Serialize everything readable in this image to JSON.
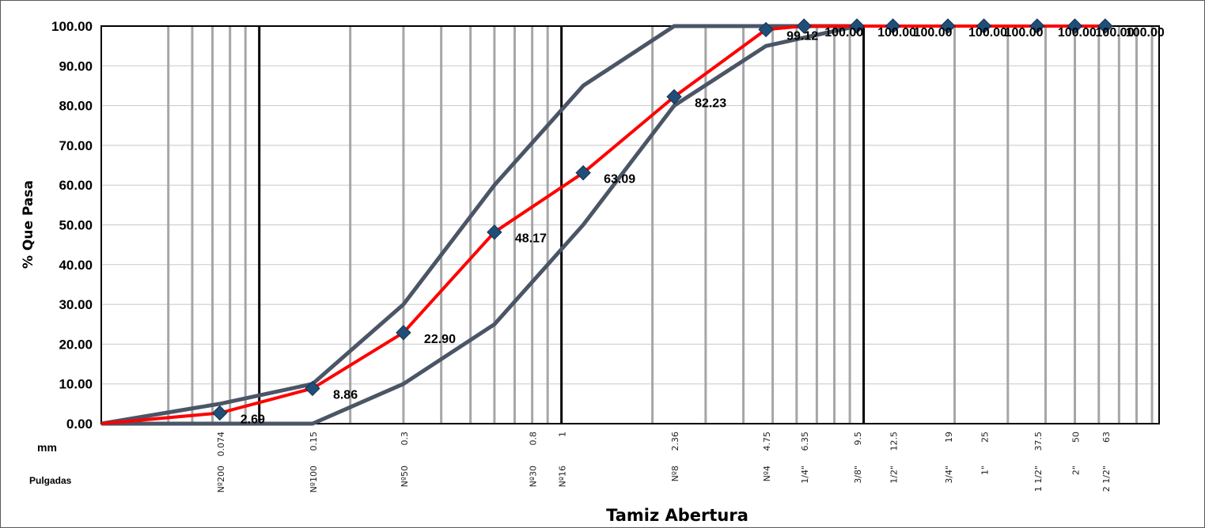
{
  "chart_data": {
    "type": "line",
    "xscale": "log",
    "xlim": [
      0.03,
      95
    ],
    "ylim": [
      0,
      100
    ],
    "ylabel": "% Que Pasa",
    "xlabel": "Tamiz Abertura",
    "row_labels": {
      "mm": "mm",
      "inches": "Pulgadas"
    },
    "yticks": [
      "0.00",
      "10.00",
      "20.00",
      "30.00",
      "40.00",
      "50.00",
      "60.00",
      "70.00",
      "80.00",
      "90.00",
      "100.00"
    ],
    "grid_mm": [
      0.05,
      0.06,
      0.07,
      0.08,
      0.09,
      0.2,
      0.3,
      0.4,
      0.5,
      0.6,
      0.7,
      0.8,
      0.9,
      2,
      3,
      4,
      5,
      6,
      7,
      8,
      9,
      20,
      30,
      40,
      50,
      60,
      70,
      80,
      90
    ],
    "major_mm": [
      0.1,
      1,
      10
    ],
    "sieves": [
      {
        "mm": "0.074",
        "name": "Nº200",
        "x": 0.074
      },
      {
        "mm": "0.15",
        "name": "Nº100",
        "x": 0.15
      },
      {
        "mm": "0.3",
        "name": "Nº50",
        "x": 0.3
      },
      {
        "mm": "0.8",
        "name": "Nº30",
        "x": 0.8
      },
      {
        "mm": "1",
        "name": "Nº16",
        "x": 1
      },
      {
        "mm": "2.36",
        "name": "Nº8",
        "x": 2.36
      },
      {
        "mm": "4.75",
        "name": "Nº4",
        "x": 4.75
      },
      {
        "mm": "6.35",
        "name": "1/4\"",
        "x": 6.35
      },
      {
        "mm": "9.5",
        "name": "3/8\"",
        "x": 9.5
      },
      {
        "mm": "12.5",
        "name": "1/2\"",
        "x": 12.5
      },
      {
        "mm": "19",
        "name": "3/4\"",
        "x": 19
      },
      {
        "mm": "25",
        "name": "1\"",
        "x": 25
      },
      {
        "mm": "37.5",
        "name": "1 1/2\"",
        "x": 37.5
      },
      {
        "mm": "50",
        "name": "2\"",
        "x": 50
      },
      {
        "mm": "63",
        "name": "2 1/2\"",
        "x": 63
      }
    ],
    "series": [
      {
        "role": "upper-limit",
        "color": "#4a5566",
        "x": [
          0.03,
          0.074,
          0.15,
          0.3,
          0.6,
          1.18,
          2.36,
          4.75,
          9.5
        ],
        "y": [
          0,
          5,
          10,
          30,
          60,
          85,
          100,
          100,
          100
        ]
      },
      {
        "role": "lower-limit",
        "color": "#4a5566",
        "x": [
          0.03,
          0.15,
          0.3,
          0.6,
          1.18,
          2.36,
          4.75,
          9.5
        ],
        "y": [
          0,
          0,
          10,
          25,
          50,
          80,
          95,
          100
        ]
      },
      {
        "role": "gradation",
        "color": "#ff0000",
        "marker_color": "#1f4e79",
        "x": [
          0.03,
          0.074,
          0.15,
          0.3,
          0.6,
          1.18,
          2.36,
          4.75,
          6.35,
          9.5,
          12.5,
          19,
          25,
          37.5,
          50,
          63
        ],
        "y": [
          0,
          2.69,
          8.86,
          22.9,
          48.17,
          63.09,
          82.23,
          99.12,
          100,
          100,
          100,
          100,
          100,
          100,
          100,
          100
        ],
        "labels": [
          "",
          "2.69",
          "8.86",
          "22.90",
          "48.17",
          "63.09",
          "82.23",
          "99.12",
          "100.00",
          "100.00",
          "100.00",
          "100.00",
          "100.00",
          "100.00",
          "100.00",
          "100.00"
        ]
      }
    ]
  }
}
